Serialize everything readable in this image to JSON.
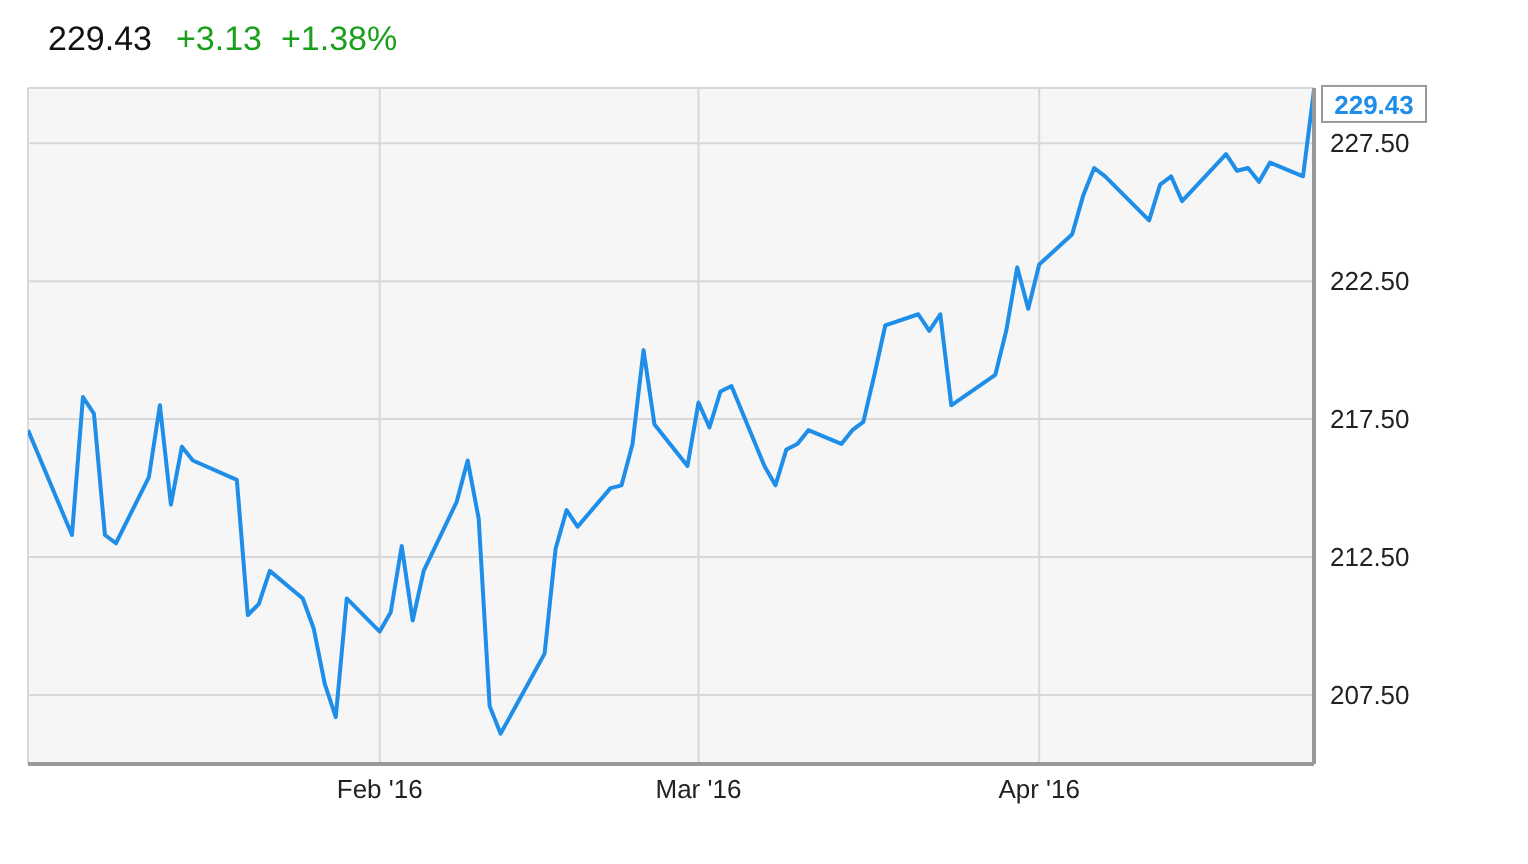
{
  "chart_data": {
    "type": "line",
    "title": "229.43",
    "subtitle": "+3.13  +1.38%",
    "x": [
      "2015-12-31",
      "2016-01-04",
      "2016-01-05",
      "2016-01-06",
      "2016-01-07",
      "2016-01-08",
      "2016-01-11",
      "2016-01-12",
      "2016-01-13",
      "2016-01-14",
      "2016-01-15",
      "2016-01-19",
      "2016-01-20",
      "2016-01-21",
      "2016-01-22",
      "2016-01-25",
      "2016-01-26",
      "2016-01-27",
      "2016-01-28",
      "2016-01-29",
      "2016-02-01",
      "2016-02-02",
      "2016-02-03",
      "2016-02-04",
      "2016-02-05",
      "2016-02-08",
      "2016-02-09",
      "2016-02-10",
      "2016-02-11",
      "2016-02-12",
      "2016-02-16",
      "2016-02-17",
      "2016-02-18",
      "2016-02-19",
      "2016-02-22",
      "2016-02-23",
      "2016-02-24",
      "2016-02-25",
      "2016-02-26",
      "2016-02-29",
      "2016-03-01",
      "2016-03-02",
      "2016-03-03",
      "2016-03-04",
      "2016-03-07",
      "2016-03-08",
      "2016-03-09",
      "2016-03-10",
      "2016-03-11",
      "2016-03-14",
      "2016-03-15",
      "2016-03-16",
      "2016-03-17",
      "2016-03-18",
      "2016-03-21",
      "2016-03-22",
      "2016-03-23",
      "2016-03-24",
      "2016-03-28",
      "2016-03-29",
      "2016-03-30",
      "2016-03-31",
      "2016-04-01",
      "2016-04-04",
      "2016-04-05",
      "2016-04-06",
      "2016-04-07",
      "2016-04-11",
      "2016-04-12",
      "2016-04-13",
      "2016-04-14",
      "2016-04-18",
      "2016-04-19",
      "2016-04-20",
      "2016-04-21",
      "2016-04-22",
      "2016-04-25",
      "2016-04-26"
    ],
    "series": [
      {
        "color": "#1f8ee8",
        "values": [
          217.1,
          213.3,
          218.3,
          217.7,
          213.3,
          213.0,
          215.4,
          218.0,
          214.4,
          216.5,
          216.0,
          215.3,
          210.4,
          210.8,
          212.0,
          211.0,
          209.9,
          207.9,
          206.7,
          211.0,
          209.8,
          210.5,
          212.9,
          210.2,
          212.0,
          214.5,
          216.0,
          213.9,
          207.1,
          206.1,
          209.0,
          212.8,
          214.2,
          213.6,
          215.0,
          215.1,
          216.6,
          220.0,
          217.3,
          215.8,
          218.1,
          217.2,
          218.5,
          218.7,
          215.8,
          215.1,
          216.4,
          216.6,
          217.1,
          216.6,
          217.1,
          217.4,
          219.1,
          220.9,
          221.3,
          220.7,
          221.3,
          218.0,
          219.1,
          220.7,
          223.0,
          221.5,
          223.1,
          224.2,
          225.6,
          226.6,
          226.3,
          224.7,
          226.0,
          226.3,
          225.4,
          227.1,
          226.5,
          226.6,
          226.1,
          226.8,
          226.3,
          229.43
        ]
      }
    ],
    "xlim": [
      "2015-12-31",
      "2016-04-26"
    ],
    "xticks": [
      {
        "value": "2016-02-01",
        "label": "Feb '16"
      },
      {
        "value": "2016-03-01",
        "label": "Mar '16"
      },
      {
        "value": "2016-04-01",
        "label": "Apr '16"
      }
    ],
    "ylim": [
      205,
      229.5
    ],
    "yticks": [
      {
        "value": 207.5,
        "label": "207.50"
      },
      {
        "value": 212.5,
        "label": "212.50"
      },
      {
        "value": 217.5,
        "label": "217.50"
      },
      {
        "value": 222.5,
        "label": "222.50"
      },
      {
        "value": 227.5,
        "label": "227.50"
      }
    ],
    "annotations": [
      {
        "text": "229.43",
        "x": "2016-04-26",
        "y": 229.43
      }
    ],
    "grid": true,
    "legend": false,
    "marker": "none",
    "line_style": "solid"
  }
}
